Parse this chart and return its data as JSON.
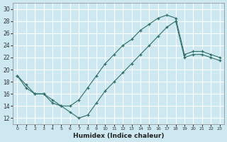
{
  "xlabel": "Humidex (Indice chaleur)",
  "bg_color": "#cde8f0",
  "grid_color": "#ffffff",
  "line_color": "#2e6e65",
  "xlim": [
    -0.5,
    23.5
  ],
  "ylim": [
    11,
    31
  ],
  "xticks": [
    0,
    1,
    2,
    3,
    4,
    5,
    6,
    7,
    8,
    9,
    10,
    11,
    12,
    13,
    14,
    15,
    16,
    17,
    18,
    19,
    20,
    21,
    22,
    23
  ],
  "yticks": [
    12,
    14,
    16,
    18,
    20,
    22,
    24,
    26,
    28,
    30
  ],
  "upper_x": [
    0,
    1,
    2,
    3,
    4,
    5,
    6,
    7,
    8,
    9,
    10,
    11,
    12,
    13,
    14,
    15,
    16,
    17,
    18,
    19,
    20,
    21,
    22,
    23
  ],
  "upper_y": [
    19,
    17.5,
    16,
    16,
    15,
    14,
    14,
    15,
    17,
    19,
    21,
    22.5,
    24,
    25,
    26.5,
    27.5,
    28.5,
    29,
    28.5,
    22.5,
    23,
    23,
    22.5,
    22
  ],
  "lower_x": [
    0,
    1,
    2,
    3,
    4,
    5,
    6,
    7,
    8,
    9,
    10,
    11,
    12,
    13,
    14,
    15,
    16,
    17,
    18,
    19,
    20,
    21,
    22,
    23
  ],
  "lower_y": [
    19,
    17,
    16,
    16,
    14.5,
    14,
    13,
    12,
    12.5,
    14.5,
    16.5,
    18,
    19.5,
    21,
    22.5,
    24,
    25.5,
    27,
    28,
    22,
    22.5,
    22.5,
    22,
    21.5
  ]
}
